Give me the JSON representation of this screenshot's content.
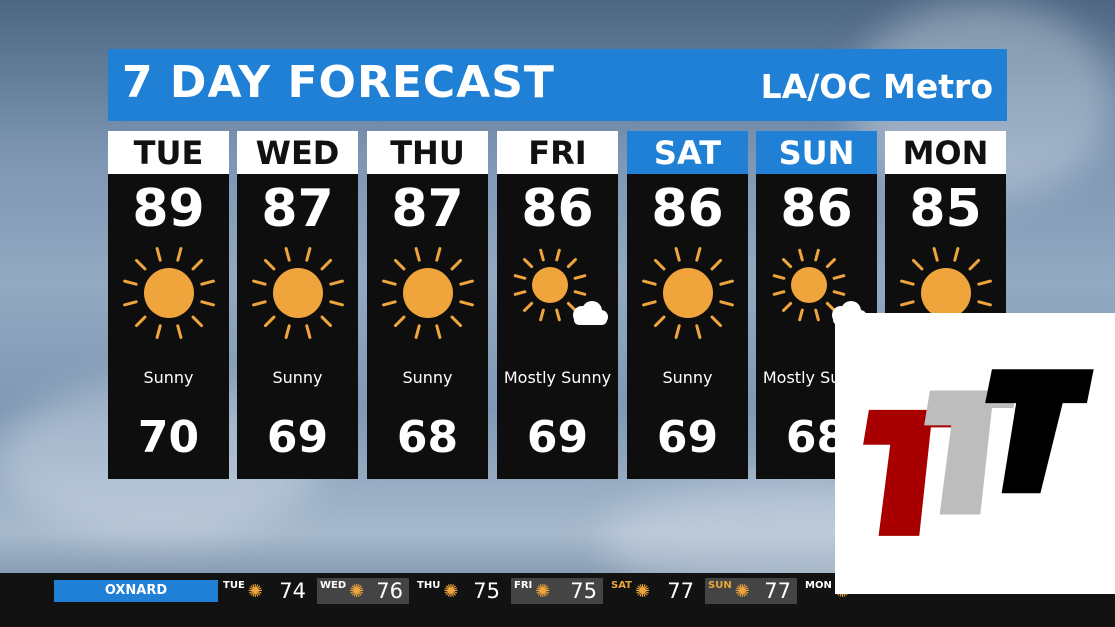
{
  "header": {
    "title": "7 DAY FORECAST",
    "region": "LA/OC Metro",
    "accent": "#1f80d6"
  },
  "days": [
    {
      "day": "TUE",
      "high": "89",
      "low": "70",
      "condition": "Sunny",
      "icon": "sun-icon",
      "weekend": false
    },
    {
      "day": "WED",
      "high": "87",
      "low": "69",
      "condition": "Sunny",
      "icon": "sun-icon",
      "weekend": false
    },
    {
      "day": "THU",
      "high": "87",
      "low": "68",
      "condition": "Sunny",
      "icon": "sun-icon",
      "weekend": false
    },
    {
      "day": "FRI",
      "high": "86",
      "low": "69",
      "condition": "Mostly Sunny",
      "icon": "mostly-sunny-icon",
      "weekend": false
    },
    {
      "day": "SAT",
      "high": "86",
      "low": "69",
      "condition": "Sunny",
      "icon": "sun-icon",
      "weekend": true
    },
    {
      "day": "SUN",
      "high": "86",
      "low": "68",
      "condition": "Mostly Sunny",
      "icon": "mostly-sunny-icon",
      "weekend": true
    },
    {
      "day": "MON",
      "high": "85",
      "low": "",
      "condition": "",
      "icon": "sun-icon",
      "weekend": false
    }
  ],
  "ticker": {
    "city": "OXNARD",
    "items": [
      {
        "day": "TUE",
        "temp": "74"
      },
      {
        "day": "WED",
        "temp": "76"
      },
      {
        "day": "THU",
        "temp": "75"
      },
      {
        "day": "FRI",
        "temp": "75"
      },
      {
        "day": "SAT",
        "temp": "77"
      },
      {
        "day": "SUN",
        "temp": "77"
      },
      {
        "day": "MON",
        "temp": ""
      }
    ]
  },
  "logo": {
    "text": "TTT",
    "colors": [
      "#a80000",
      "#bdbdbd",
      "#000000"
    ]
  }
}
